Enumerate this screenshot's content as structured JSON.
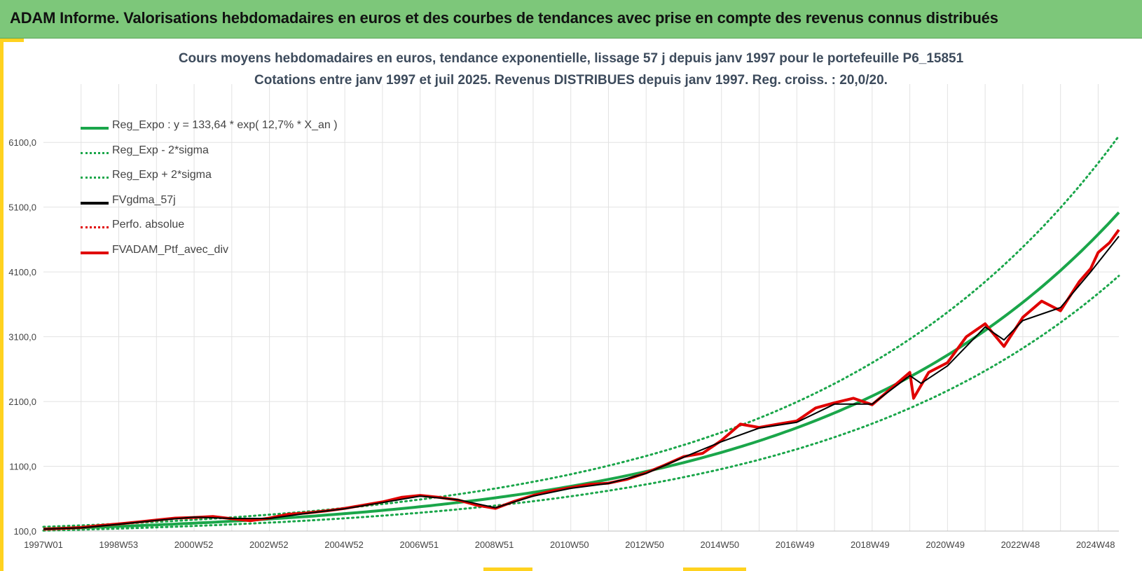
{
  "header": {
    "title": "ADAM Informe. Valorisations hebdomadaires en euros et des courbes de tendances avec prise en compte des revenus connus distribués"
  },
  "chart_title": {
    "line1": "Cours moyens hebdomadaires  en euros, tendance exponentielle, lissage 57 j depuis janv 1997 pour le portefeuille P6_15851",
    "line2": "Cotations  entre janv 1997 et juil 2025. Revenus DISTRIBUES depuis janv 1997. Reg. croiss. : 20,0/20."
  },
  "legend": [
    {
      "label": "Reg_Expo : y = 133,64 * exp( 12,7% *  X_an )",
      "color": "#1aa64a",
      "style": "solid"
    },
    {
      "label": "Reg_Exp - 2*sigma",
      "color": "#1aa64a",
      "style": "dotted"
    },
    {
      "label": "Reg_Exp + 2*sigma",
      "color": "#1aa64a",
      "style": "dotted"
    },
    {
      "label": "FVgdma_57j",
      "color": "#000000",
      "style": "solid"
    },
    {
      "label": "Perfo. absolue",
      "color": "#e00000",
      "style": "dotted"
    },
    {
      "label": "FVADAM_Ptf_avec_div",
      "color": "#e00000",
      "style": "solid"
    }
  ],
  "colors": {
    "header_bg": "#7dc77a",
    "accent": "#ffd21f",
    "grid": "#e2e2e2",
    "trend": "#1aa64a",
    "portfolio": "#e00000",
    "smoothed": "#000000"
  },
  "chart_data": {
    "type": "line",
    "x_tick_labels": [
      "1997W01",
      "1998W53",
      "2000W52",
      "2002W52",
      "2004W52",
      "2006W51",
      "2008W51",
      "2010W50",
      "2012W50",
      "2014W50",
      "2016W49",
      "2018W49",
      "2020W49",
      "2022W48",
      "2024W48"
    ],
    "y_tick_labels": [
      "100,0",
      "1100,0",
      "2100,0",
      "3100,0",
      "4100,0",
      "5100,0",
      "6100,0"
    ],
    "ylim": [
      100,
      7000
    ],
    "xlim_years": [
      1997.0,
      2025.55
    ],
    "grid": true,
    "legend_position": "top-left",
    "regression": {
      "a": 133.64,
      "b": 0.127,
      "band_low_factor": 0.805,
      "band_high_factor": 1.235
    },
    "series": [
      {
        "name": "FVADAM_Ptf_avec_div",
        "x": [
          1997.0,
          1997.5,
          1998.0,
          1998.5,
          1999.0,
          1999.5,
          2000.0,
          2000.5,
          2001.0,
          2001.5,
          2002.0,
          2002.5,
          2003.0,
          2003.5,
          2004.0,
          2004.5,
          2005.0,
          2005.5,
          2006.0,
          2006.5,
          2007.0,
          2007.5,
          2008.0,
          2008.5,
          2009.0,
          2009.5,
          2010.0,
          2010.5,
          2011.0,
          2011.5,
          2012.0,
          2012.5,
          2013.0,
          2013.5,
          2014.0,
          2014.5,
          2015.0,
          2015.5,
          2016.0,
          2016.5,
          2017.0,
          2017.5,
          2018.0,
          2018.5,
          2019.0,
          2019.5,
          2020.0,
          2020.1,
          2020.5,
          2021.0,
          2021.5,
          2022.0,
          2022.5,
          2023.0,
          2023.5,
          2024.0,
          2024.5,
          2024.8,
          2025.0,
          2025.3,
          2025.55
        ],
        "values": [
          130,
          140,
          155,
          185,
          210,
          240,
          270,
          300,
          310,
          325,
          290,
          260,
          300,
          360,
          380,
          410,
          450,
          500,
          550,
          620,
          650,
          620,
          580,
          500,
          450,
          560,
          650,
          720,
          770,
          820,
          840,
          900,
          1000,
          1120,
          1250,
          1300,
          1500,
          1750,
          1700,
          1750,
          1800,
          2000,
          2080,
          2150,
          2050,
          2300,
          2550,
          2150,
          2550,
          2700,
          3100,
          3300,
          2950,
          3400,
          3650,
          3500,
          3950,
          4150,
          4400,
          4550,
          4750
        ]
      },
      {
        "name": "FVgdma_57j",
        "x": [
          1997.0,
          1998.0,
          1999.0,
          2000.0,
          2001.0,
          2002.0,
          2003.0,
          2004.0,
          2005.0,
          2006.0,
          2007.0,
          2008.0,
          2009.0,
          2010.0,
          2011.0,
          2012.0,
          2013.0,
          2014.0,
          2015.0,
          2016.0,
          2017.0,
          2018.0,
          2019.0,
          2020.0,
          2020.3,
          2021.0,
          2022.0,
          2022.5,
          2023.0,
          2024.0,
          2024.8,
          2025.55
        ],
        "values": [
          130,
          150,
          205,
          265,
          315,
          295,
          295,
          375,
          445,
          540,
          640,
          585,
          460,
          640,
          760,
          835,
          990,
          1240,
          1480,
          1690,
          1780,
          2060,
          2060,
          2500,
          2380,
          2650,
          3250,
          3050,
          3350,
          3550,
          4100,
          4650
        ]
      }
    ]
  }
}
